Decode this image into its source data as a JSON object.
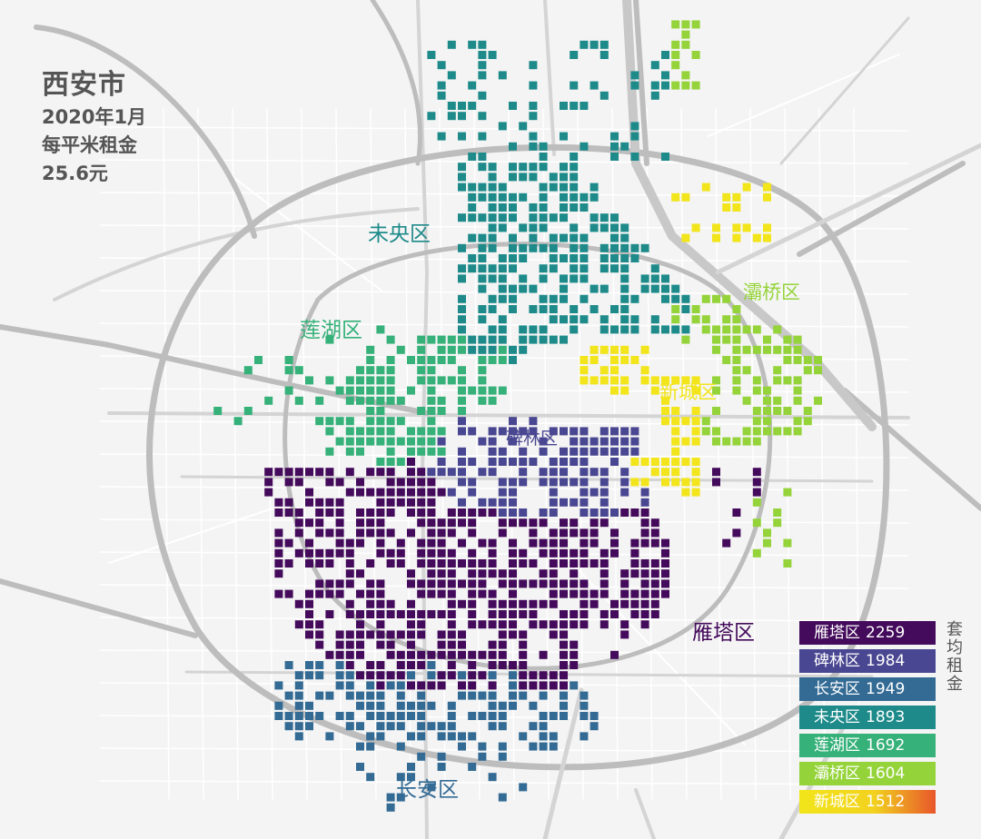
{
  "title": {
    "city": "西安市",
    "date": "2020年1月",
    "metric": "每平米租金",
    "value": "25.6元"
  },
  "legend": {
    "caption": "套均租金",
    "items": [
      {
        "district": "雁塔区",
        "rent": "2259",
        "color": "#440a5b"
      },
      {
        "district": "碑林区",
        "rent": "1984",
        "color": "#4a4792"
      },
      {
        "district": "长安区",
        "rent": "1949",
        "color": "#336b95"
      },
      {
        "district": "未央区",
        "rent": "1893",
        "color": "#1e8a8a"
      },
      {
        "district": "莲湖区",
        "rent": "1692",
        "color": "#35b179"
      },
      {
        "district": "灞桥区",
        "rent": "1604",
        "color": "#95d33a"
      },
      {
        "district": "新城区",
        "rent": "1512",
        "color": "#f2e51b",
        "gradient_end": "#e8562a"
      }
    ]
  },
  "districts": [
    {
      "id": "yanta",
      "name": "雁塔区",
      "color": "#440a5b"
    },
    {
      "id": "beilin",
      "name": "碑林区",
      "color": "#4a4792"
    },
    {
      "id": "changan",
      "name": "长安区",
      "color": "#336b95"
    },
    {
      "id": "weiyang",
      "name": "未央区",
      "color": "#1e8a8a"
    },
    {
      "id": "lianhu",
      "name": "莲湖区",
      "color": "#35b179"
    },
    {
      "id": "baqiao",
      "name": "灞桥区",
      "color": "#95d33a"
    },
    {
      "id": "xincheng",
      "name": "新城区",
      "color": "#f2e51b"
    }
  ]
}
